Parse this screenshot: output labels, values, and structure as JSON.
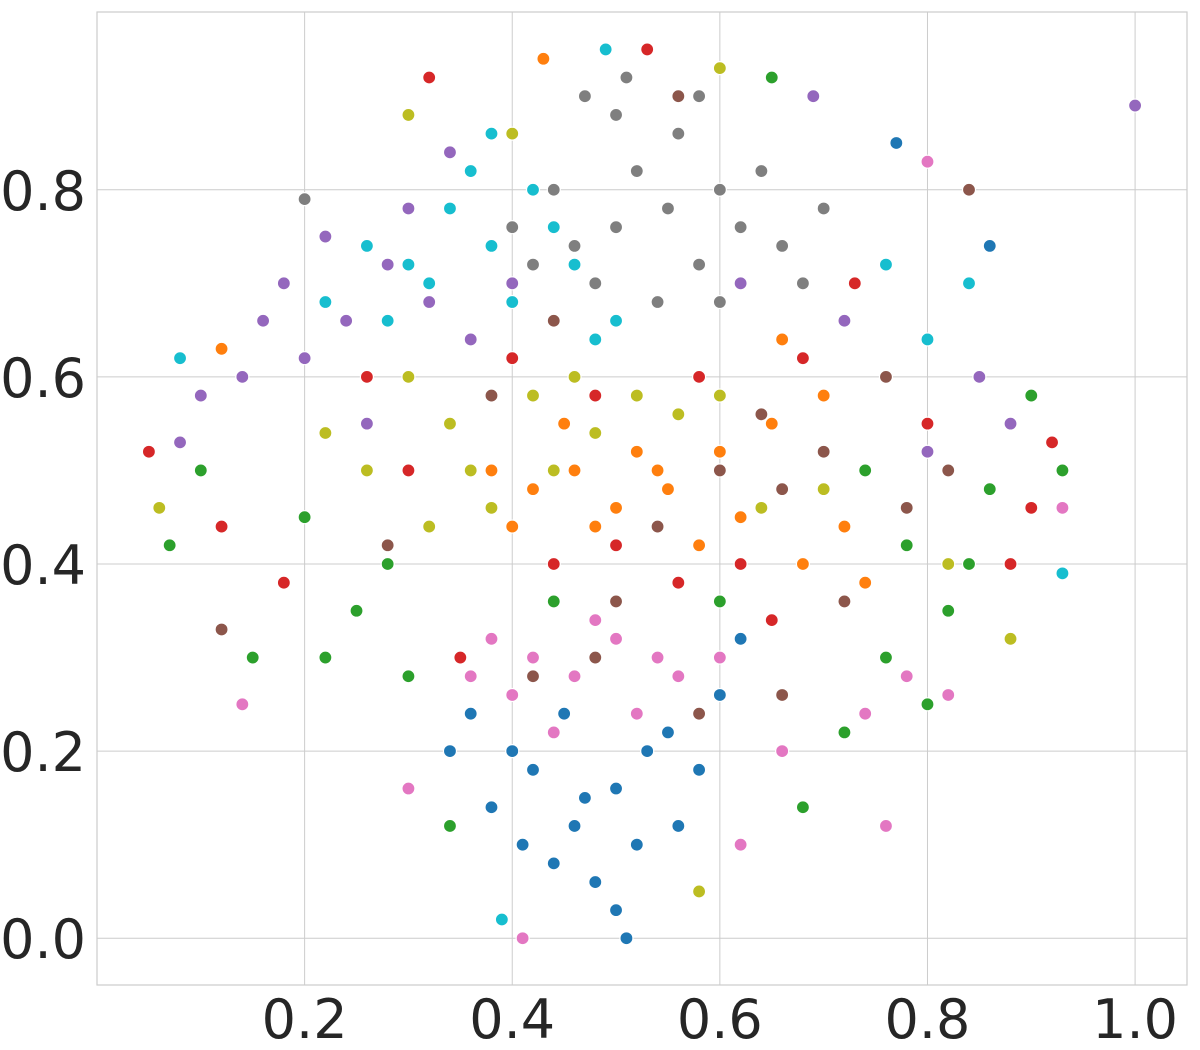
{
  "chart_data": {
    "type": "scatter",
    "title": "",
    "xlabel": "",
    "ylabel": "",
    "xlim": [
      0.0,
      1.05
    ],
    "ylim": [
      -0.05,
      0.99
    ],
    "x_ticks": [
      {
        "value": 0.2,
        "label": "0.2"
      },
      {
        "value": 0.4,
        "label": "0.4"
      },
      {
        "value": 0.6,
        "label": "0.6"
      },
      {
        "value": 0.8,
        "label": "0.8"
      },
      {
        "value": 1.0,
        "label": "1.0"
      }
    ],
    "y_ticks": [
      {
        "value": 0.0,
        "label": "0.0"
      },
      {
        "value": 0.2,
        "label": "0.2"
      },
      {
        "value": 0.4,
        "label": "0.4"
      },
      {
        "value": 0.6,
        "label": "0.6"
      },
      {
        "value": 0.8,
        "label": "0.8"
      }
    ],
    "grid": true,
    "legend": "none",
    "palette": [
      "#1f77b4",
      "#ff7f0e",
      "#2ca02c",
      "#d62728",
      "#9467bd",
      "#8c564b",
      "#e377c2",
      "#7f7f7f",
      "#bcbd22",
      "#17becf"
    ],
    "series": [
      {
        "color": "#1f77b4",
        "points": [
          [
            0.42,
            0.18
          ],
          [
            0.46,
            0.12
          ],
          [
            0.5,
            0.16
          ],
          [
            0.4,
            0.2
          ],
          [
            0.55,
            0.22
          ],
          [
            0.44,
            0.08
          ],
          [
            0.52,
            0.1
          ],
          [
            0.38,
            0.14
          ],
          [
            0.48,
            0.06
          ],
          [
            0.58,
            0.18
          ],
          [
            0.34,
            0.2
          ],
          [
            0.6,
            0.26
          ],
          [
            0.45,
            0.24
          ],
          [
            0.5,
            0.03
          ],
          [
            0.47,
            0.15
          ],
          [
            0.62,
            0.32
          ],
          [
            0.36,
            0.24
          ],
          [
            0.53,
            0.2
          ],
          [
            0.56,
            0.12
          ],
          [
            0.41,
            0.1
          ],
          [
            0.51,
            0.0
          ],
          [
            0.77,
            0.85
          ],
          [
            0.86,
            0.74
          ]
        ]
      },
      {
        "color": "#ff7f0e",
        "points": [
          [
            0.42,
            0.48
          ],
          [
            0.46,
            0.5
          ],
          [
            0.5,
            0.46
          ],
          [
            0.55,
            0.48
          ],
          [
            0.6,
            0.52
          ],
          [
            0.66,
            0.64
          ],
          [
            0.62,
            0.45
          ],
          [
            0.68,
            0.4
          ],
          [
            0.52,
            0.52
          ],
          [
            0.38,
            0.5
          ],
          [
            0.58,
            0.42
          ],
          [
            0.72,
            0.44
          ],
          [
            0.45,
            0.55
          ],
          [
            0.65,
            0.55
          ],
          [
            0.48,
            0.44
          ],
          [
            0.7,
            0.58
          ],
          [
            0.74,
            0.38
          ],
          [
            0.4,
            0.44
          ],
          [
            0.54,
            0.5
          ],
          [
            0.12,
            0.63
          ],
          [
            0.43,
            0.94
          ]
        ]
      },
      {
        "color": "#2ca02c",
        "points": [
          [
            0.25,
            0.35
          ],
          [
            0.3,
            0.28
          ],
          [
            0.22,
            0.3
          ],
          [
            0.78,
            0.42
          ],
          [
            0.82,
            0.35
          ],
          [
            0.76,
            0.3
          ],
          [
            0.86,
            0.48
          ],
          [
            0.72,
            0.22
          ],
          [
            0.2,
            0.45
          ],
          [
            0.15,
            0.3
          ],
          [
            0.8,
            0.25
          ],
          [
            0.34,
            0.12
          ],
          [
            0.68,
            0.14
          ],
          [
            0.9,
            0.58
          ],
          [
            0.1,
            0.5
          ],
          [
            0.28,
            0.4
          ],
          [
            0.74,
            0.5
          ],
          [
            0.84,
            0.4
          ],
          [
            0.6,
            0.36
          ],
          [
            0.44,
            0.36
          ],
          [
            0.07,
            0.42
          ],
          [
            0.93,
            0.5
          ],
          [
            0.65,
            0.92
          ]
        ]
      },
      {
        "color": "#d62728",
        "points": [
          [
            0.44,
            0.4
          ],
          [
            0.5,
            0.42
          ],
          [
            0.56,
            0.38
          ],
          [
            0.62,
            0.4
          ],
          [
            0.48,
            0.58
          ],
          [
            0.58,
            0.6
          ],
          [
            0.68,
            0.62
          ],
          [
            0.35,
            0.3
          ],
          [
            0.8,
            0.55
          ],
          [
            0.88,
            0.4
          ],
          [
            0.12,
            0.44
          ],
          [
            0.26,
            0.6
          ],
          [
            0.73,
            0.7
          ],
          [
            0.4,
            0.62
          ],
          [
            0.54,
            0.3
          ],
          [
            0.65,
            0.34
          ],
          [
            0.3,
            0.5
          ],
          [
            0.9,
            0.46
          ],
          [
            0.18,
            0.38
          ],
          [
            0.05,
            0.52
          ],
          [
            0.53,
            0.95
          ],
          [
            0.32,
            0.92
          ],
          [
            0.92,
            0.53
          ]
        ]
      },
      {
        "color": "#9467bd",
        "points": [
          [
            0.28,
            0.72
          ],
          [
            0.24,
            0.66
          ],
          [
            0.32,
            0.68
          ],
          [
            0.2,
            0.62
          ],
          [
            0.3,
            0.78
          ],
          [
            0.36,
            0.64
          ],
          [
            0.18,
            0.7
          ],
          [
            0.26,
            0.55
          ],
          [
            0.14,
            0.6
          ],
          [
            0.34,
            0.84
          ],
          [
            0.4,
            0.7
          ],
          [
            0.22,
            0.75
          ],
          [
            0.1,
            0.58
          ],
          [
            0.85,
            0.6
          ],
          [
            0.88,
            0.55
          ],
          [
            0.8,
            0.52
          ],
          [
            0.72,
            0.66
          ],
          [
            0.62,
            0.7
          ],
          [
            0.16,
            0.66
          ],
          [
            0.08,
            0.53
          ],
          [
            0.69,
            0.9
          ],
          [
            1.0,
            0.89
          ]
        ]
      },
      {
        "color": "#8c564b",
        "points": [
          [
            0.6,
            0.5
          ],
          [
            0.66,
            0.48
          ],
          [
            0.7,
            0.52
          ],
          [
            0.54,
            0.44
          ],
          [
            0.76,
            0.6
          ],
          [
            0.82,
            0.5
          ],
          [
            0.48,
            0.3
          ],
          [
            0.58,
            0.24
          ],
          [
            0.64,
            0.56
          ],
          [
            0.42,
            0.28
          ],
          [
            0.38,
            0.58
          ],
          [
            0.28,
            0.42
          ],
          [
            0.72,
            0.36
          ],
          [
            0.66,
            0.26
          ],
          [
            0.84,
            0.8
          ],
          [
            0.5,
            0.36
          ],
          [
            0.44,
            0.66
          ],
          [
            0.78,
            0.46
          ],
          [
            0.56,
            0.9
          ],
          [
            0.12,
            0.33
          ]
        ]
      },
      {
        "color": "#e377c2",
        "points": [
          [
            0.42,
            0.3
          ],
          [
            0.46,
            0.28
          ],
          [
            0.5,
            0.32
          ],
          [
            0.4,
            0.26
          ],
          [
            0.52,
            0.24
          ],
          [
            0.48,
            0.34
          ],
          [
            0.56,
            0.28
          ],
          [
            0.44,
            0.22
          ],
          [
            0.38,
            0.32
          ],
          [
            0.54,
            0.3
          ],
          [
            0.6,
            0.3
          ],
          [
            0.36,
            0.28
          ],
          [
            0.78,
            0.28
          ],
          [
            0.82,
            0.26
          ],
          [
            0.74,
            0.24
          ],
          [
            0.62,
            0.1
          ],
          [
            0.66,
            0.2
          ],
          [
            0.3,
            0.16
          ],
          [
            0.14,
            0.25
          ],
          [
            0.76,
            0.12
          ],
          [
            0.41,
            0.0
          ],
          [
            0.8,
            0.83
          ],
          [
            0.93,
            0.46
          ]
        ]
      },
      {
        "color": "#7f7f7f",
        "points": [
          [
            0.5,
            0.76
          ],
          [
            0.55,
            0.78
          ],
          [
            0.6,
            0.8
          ],
          [
            0.46,
            0.74
          ],
          [
            0.52,
            0.82
          ],
          [
            0.58,
            0.72
          ],
          [
            0.62,
            0.76
          ],
          [
            0.48,
            0.7
          ],
          [
            0.56,
            0.86
          ],
          [
            0.64,
            0.82
          ],
          [
            0.42,
            0.72
          ],
          [
            0.66,
            0.74
          ],
          [
            0.54,
            0.68
          ],
          [
            0.6,
            0.68
          ],
          [
            0.5,
            0.88
          ],
          [
            0.58,
            0.9
          ],
          [
            0.7,
            0.78
          ],
          [
            0.44,
            0.8
          ],
          [
            0.4,
            0.76
          ],
          [
            0.68,
            0.7
          ],
          [
            0.51,
            0.92
          ],
          [
            0.2,
            0.79
          ],
          [
            0.47,
            0.9
          ]
        ]
      },
      {
        "color": "#bcbd22",
        "points": [
          [
            0.3,
            0.6
          ],
          [
            0.34,
            0.55
          ],
          [
            0.36,
            0.5
          ],
          [
            0.42,
            0.58
          ],
          [
            0.38,
            0.46
          ],
          [
            0.46,
            0.6
          ],
          [
            0.52,
            0.58
          ],
          [
            0.56,
            0.56
          ],
          [
            0.6,
            0.58
          ],
          [
            0.64,
            0.46
          ],
          [
            0.7,
            0.48
          ],
          [
            0.44,
            0.5
          ],
          [
            0.32,
            0.44
          ],
          [
            0.26,
            0.5
          ],
          [
            0.48,
            0.54
          ],
          [
            0.22,
            0.54
          ],
          [
            0.3,
            0.88
          ],
          [
            0.4,
            0.86
          ],
          [
            0.82,
            0.4
          ],
          [
            0.88,
            0.32
          ],
          [
            0.58,
            0.05
          ],
          [
            0.06,
            0.46
          ],
          [
            0.6,
            0.93
          ]
        ]
      },
      {
        "color": "#17becf",
        "points": [
          [
            0.34,
            0.78
          ],
          [
            0.38,
            0.74
          ],
          [
            0.3,
            0.72
          ],
          [
            0.36,
            0.82
          ],
          [
            0.42,
            0.8
          ],
          [
            0.4,
            0.68
          ],
          [
            0.28,
            0.66
          ],
          [
            0.44,
            0.76
          ],
          [
            0.32,
            0.7
          ],
          [
            0.46,
            0.72
          ],
          [
            0.5,
            0.66
          ],
          [
            0.22,
            0.68
          ],
          [
            0.8,
            0.64
          ],
          [
            0.76,
            0.72
          ],
          [
            0.84,
            0.7
          ],
          [
            0.26,
            0.74
          ],
          [
            0.38,
            0.86
          ],
          [
            0.48,
            0.64
          ],
          [
            0.49,
            0.95
          ],
          [
            0.93,
            0.39
          ],
          [
            0.39,
            0.02
          ],
          [
            0.08,
            0.62
          ]
        ]
      }
    ]
  }
}
